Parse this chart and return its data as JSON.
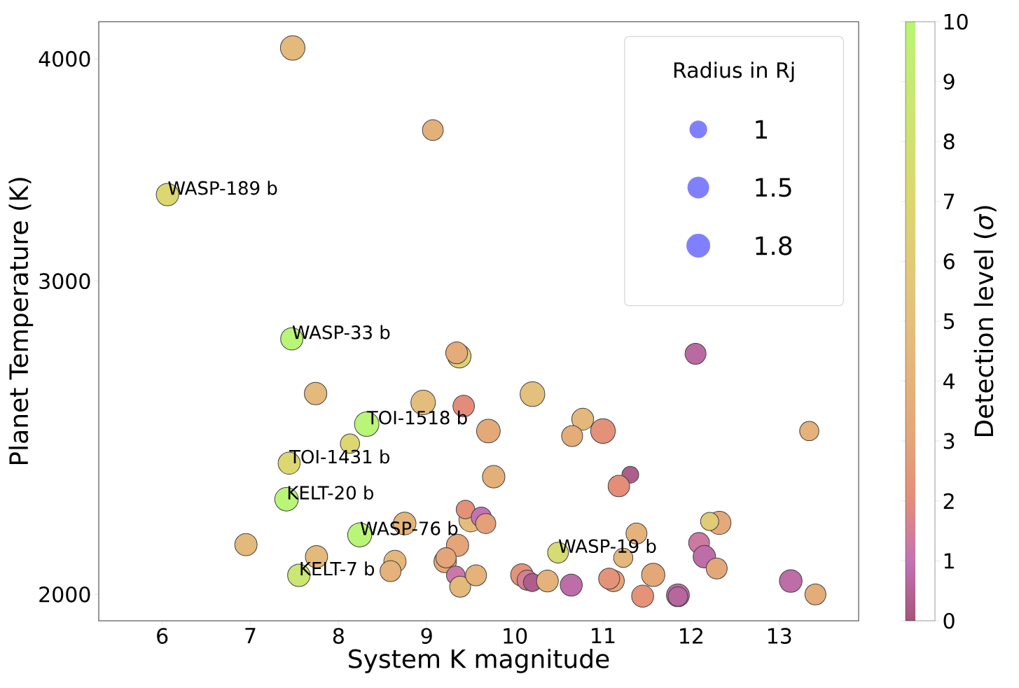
{
  "chart_data": {
    "type": "bubble",
    "xlabel": "System K magnitude",
    "ylabel": "Planet Temperature (K)",
    "clabel": "Detection level (*σ*)",
    "legend_title": "Radius in Rj",
    "x": [
      7.48,
      9.07,
      6.06,
      7.47,
      9.37,
      9.34,
      7.74,
      8.96,
      9.42,
      8.32,
      9.7,
      10.2,
      10.77,
      10.65,
      11.0,
      13.34,
      12.05,
      8.13,
      7.44,
      9.76,
      11.31,
      11.18,
      7.41,
      9.5,
      9.44,
      9.62,
      9.67,
      8.75,
      8.24,
      6.95,
      9.35,
      7.75,
      8.64,
      8.59,
      9.21,
      9.22,
      9.33,
      9.38,
      9.56,
      7.55,
      10.08,
      10.14,
      10.2,
      10.37,
      10.64,
      10.49,
      11.23,
      11.38,
      11.12,
      11.07,
      11.57,
      11.45,
      11.85,
      11.85,
      12.32,
      12.21,
      12.09,
      12.15,
      12.29,
      13.13,
      13.41
    ],
    "values": [
      4057,
      3648,
      3356,
      2784,
      2722,
      2734,
      2594,
      2564,
      2552,
      2493,
      2471,
      2592,
      2509,
      2455,
      2471,
      2471,
      2731,
      2431,
      2370,
      2329,
      2335,
      2301,
      2262,
      2202,
      2232,
      2210,
      2192,
      2192,
      2160,
      2133,
      2131,
      2100,
      2087,
      2061,
      2087,
      2097,
      2050,
      2020,
      2050,
      2050,
      2051,
      2037,
      2031,
      2035,
      2024,
      2111,
      2097,
      2164,
      2035,
      2041,
      2051,
      1996,
      1998,
      1995,
      2194,
      2198,
      2138,
      2100,
      2068,
      2035,
      2000
    ],
    "cvalues": [
      4.5,
      3.8,
      7,
      10,
      6.5,
      3.5,
      4.5,
      4.8,
      2,
      10,
      3.3,
      5,
      4.3,
      3.5,
      2.2,
      4,
      0.7,
      7,
      7,
      3.8,
      0.3,
      2.1,
      10,
      4.8,
      2.2,
      1,
      2.8,
      4.2,
      10,
      4.5,
      3,
      4.5,
      4.3,
      4,
      3.2,
      3,
      1.2,
      4.5,
      4,
      8.5,
      2.3,
      1.5,
      0.3,
      4,
      0.8,
      7.5,
      4.3,
      4,
      3,
      2.3,
      3.2,
      2.3,
      0.8,
      0.6,
      3.3,
      6,
      1.3,
      0.8,
      3.2,
      0.8,
      3.5
    ],
    "sizes": [
      1.92,
      1.38,
      1.61,
      1.58,
      1.76,
      1.52,
      1.61,
      1.92,
      1.48,
      1.9,
      1.79,
      1.95,
      1.52,
      1.41,
      1.95,
      1.18,
      1.41,
      1.18,
      1.55,
      1.61,
      0.9,
      1.48,
      1.76,
      1.79,
      1.1,
      1.3,
      1.3,
      1.64,
      1.84,
      1.58,
      1.58,
      1.58,
      1.58,
      1.41,
      1.61,
      1.3,
      1.1,
      1.41,
      1.41,
      1.61,
      1.61,
      1.3,
      1.05,
      1.52,
      1.55,
      1.38,
      1.18,
      1.41,
      1.48,
      1.41,
      1.73,
      1.55,
      1.67,
      1.22,
      1.73,
      1.05,
      1.38,
      1.61,
      1.41,
      1.64,
      1.41
    ],
    "size_legend": [
      1,
      1.5,
      1.8
    ],
    "xlim": [
      5.28,
      13.9
    ],
    "ylim": [
      1933,
      4198
    ],
    "log": "y",
    "xticks": [
      6,
      7,
      8,
      9,
      10,
      11,
      12,
      13
    ],
    "yticks": [
      2000,
      3000,
      4000
    ],
    "clim": [
      0,
      10
    ],
    "cticks": [
      0,
      1,
      2,
      3,
      4,
      5,
      6,
      7,
      8,
      9,
      10
    ],
    "marker": "circle",
    "annotations": [
      {
        "text": "WASP-189 b",
        "x": 6.06,
        "y": 3356
      },
      {
        "text": "WASP-33 b",
        "x": 7.47,
        "y": 2784
      },
      {
        "text": "TOI-1518 b",
        "x": 8.32,
        "y": 2493
      },
      {
        "text": "TOI-1431 b",
        "x": 7.44,
        "y": 2370
      },
      {
        "text": "KELT-20 b",
        "x": 7.41,
        "y": 2262
      },
      {
        "text": "WASP-76 b",
        "x": 8.24,
        "y": 2160
      },
      {
        "text": "WASP-19 b",
        "x": 10.49,
        "y": 2111
      },
      {
        "text": "KELT-7 b",
        "x": 7.55,
        "y": 2050
      }
    ]
  }
}
